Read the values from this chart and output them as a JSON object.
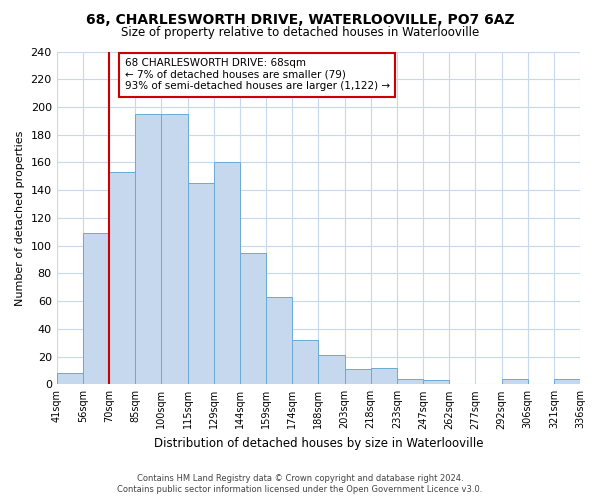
{
  "title": "68, CHARLESWORTH DRIVE, WATERLOOVILLE, PO7 6AZ",
  "subtitle": "Size of property relative to detached houses in Waterlooville",
  "xlabel": "Distribution of detached houses by size in Waterlooville",
  "ylabel": "Number of detached properties",
  "bar_heights": [
    8,
    109,
    153,
    195,
    195,
    145,
    160,
    95,
    63,
    32,
    21,
    11,
    12,
    4,
    3,
    0,
    0,
    4,
    0,
    4
  ],
  "bar_color": "#c5d8ee",
  "bar_edge_color": "#6aaad4",
  "highlight_bin": 2,
  "highlight_color": "#cc0000",
  "annotation_line1": "68 CHARLESWORTH DRIVE: 68sqm",
  "annotation_line2": "← 7% of detached houses are smaller (79)",
  "annotation_line3": "93% of semi-detached houses are larger (1,122) →",
  "annotation_box_color": "#ffffff",
  "annotation_box_edge": "#cc0000",
  "ylim": [
    0,
    240
  ],
  "yticks": [
    0,
    20,
    40,
    60,
    80,
    100,
    120,
    140,
    160,
    180,
    200,
    220,
    240
  ],
  "xtick_labels": [
    "41sqm",
    "56sqm",
    "70sqm",
    "85sqm",
    "100sqm",
    "115sqm",
    "129sqm",
    "144sqm",
    "159sqm",
    "174sqm",
    "188sqm",
    "203sqm",
    "218sqm",
    "233sqm",
    "247sqm",
    "262sqm",
    "277sqm",
    "292sqm",
    "306sqm",
    "321sqm",
    "336sqm"
  ],
  "footer_line1": "Contains HM Land Registry data © Crown copyright and database right 2024.",
  "footer_line2": "Contains public sector information licensed under the Open Government Licence v3.0.",
  "background_color": "#ffffff",
  "grid_color": "#c8d8ec",
  "n_bins": 20,
  "red_line_x": 2.0
}
